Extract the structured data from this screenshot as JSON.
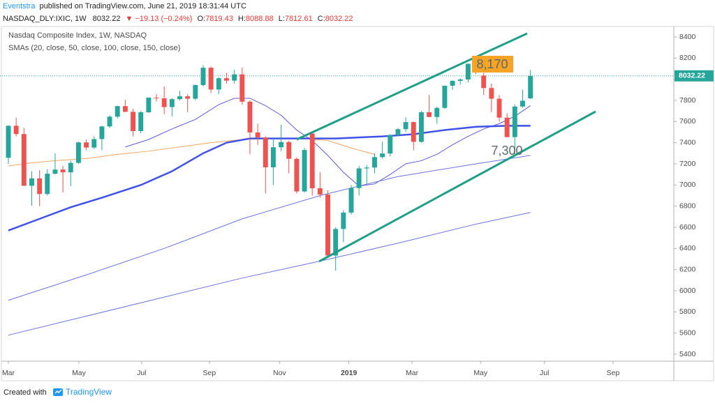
{
  "header": {
    "author": "Eventstra",
    "published": "published on TradingView.com, June 21, 2019 18:31:44 UTC",
    "symbol": "NASDAQ_DLY:IXIC, 1W",
    "last": "8032.22",
    "change": "▼ −19.13 (−0.24%)",
    "ohlc": [
      {
        "label": "O:",
        "value": "7819.43"
      },
      {
        "label": "H:",
        "value": "8088.88"
      },
      {
        "label": "L:",
        "value": "7812.61"
      },
      {
        "label": "C:",
        "value": "8032.22"
      }
    ]
  },
  "chart_data": {
    "type": "candlestick",
    "title": "Nasdaq Composite Index, 1W, NASDAQ",
    "subtitle": "SMAs (20, close, 50, close, 100, close, 150, close)",
    "x": [
      0,
      1,
      2,
      3,
      4,
      5,
      6,
      7,
      8,
      9,
      10,
      11,
      12,
      13,
      14,
      15,
      16,
      17,
      18,
      19,
      20,
      21,
      22,
      23,
      24,
      25,
      26,
      27,
      28,
      29,
      30,
      31,
      32,
      33,
      34,
      35,
      36,
      37,
      38,
      39,
      40,
      41,
      42,
      43,
      44,
      45,
      46,
      47,
      48,
      49,
      50,
      51,
      52,
      53,
      54,
      55,
      56,
      57,
      58,
      59,
      60,
      61,
      62,
      63,
      64,
      65,
      66,
      67
    ],
    "open": [
      7257,
      7560,
      7482,
      6993,
      7063,
      6915,
      7107,
      7146,
      7120,
      7209,
      7403,
      7354,
      7434,
      7554,
      7646,
      7746,
      7692,
      7510,
      7688,
      7826,
      7820,
      7737,
      7812,
      7839,
      7816,
      7945,
      8109,
      7903,
      8010,
      7987,
      8046,
      7788,
      7497,
      7449,
      7167,
      7357,
      7406,
      7248,
      6939,
      7486,
      6969,
      6910,
      6333,
      6584,
      6739,
      6971,
      7157,
      7165,
      7264,
      7298,
      7472,
      7528,
      7595,
      7408,
      7688,
      7643,
      7729,
      7939,
      7985,
      7998,
      8146,
      8035,
      7917,
      7816,
      7637,
      7453,
      7742,
      7820
    ],
    "high": [
      7565,
      7637,
      7540,
      7130,
      7140,
      7150,
      7300,
      7180,
      7230,
      7410,
      7430,
      7460,
      7560,
      7660,
      7750,
      7806,
      7720,
      7700,
      7830,
      7860,
      7933,
      7820,
      7890,
      7860,
      7950,
      8133,
      8120,
      8020,
      8060,
      8090,
      8110,
      7800,
      7580,
      7460,
      7450,
      7570,
      7420,
      7260,
      7350,
      7490,
      7120,
      6950,
      6600,
      6760,
      7000,
      7180,
      7190,
      7300,
      7410,
      7480,
      7540,
      7640,
      7600,
      7700,
      7850,
      7740,
      7940,
      7990,
      8010,
      8150,
      8176,
      8060,
      7960,
      7850,
      7680,
      7760,
      7900,
      8089
    ],
    "low": [
      7200,
      7460,
      6990,
      6805,
      6800,
      6900,
      7100,
      6930,
      6990,
      7200,
      7330,
      7340,
      7330,
      7540,
      7630,
      7690,
      7460,
      7490,
      7680,
      7790,
      7670,
      7650,
      7800,
      7690,
      7800,
      7930,
      7870,
      7860,
      7960,
      7960,
      7760,
      7290,
      7380,
      6920,
      7000,
      7320,
      7110,
      6920,
      6930,
      6900,
      6880,
      6330,
      6190,
      6460,
      6720,
      6900,
      7010,
      7110,
      7250,
      7270,
      7460,
      7500,
      7330,
      7400,
      7640,
      7580,
      7720,
      7900,
      7950,
      7970,
      8050,
      7850,
      7690,
      7600,
      7450,
      7290,
      7730,
      7813
    ],
    "close": [
      7560,
      7482,
      6993,
      7063,
      6915,
      7107,
      7146,
      7120,
      7209,
      7403,
      7354,
      7434,
      7554,
      7646,
      7746,
      7692,
      7510,
      7688,
      7826,
      7820,
      7737,
      7812,
      7839,
      7816,
      7945,
      8109,
      7903,
      8010,
      7987,
      8046,
      7788,
      7497,
      7449,
      7167,
      7357,
      7406,
      7248,
      6939,
      7331,
      6969,
      6910,
      6333,
      6584,
      6739,
      6971,
      7157,
      7165,
      7264,
      7298,
      7472,
      7528,
      7595,
      7408,
      7688,
      7643,
      7729,
      7939,
      7985,
      7998,
      8146,
      8164,
      7917,
      7816,
      7637,
      7453,
      7742,
      7797,
      8032
    ],
    "up_color": "#26a69a",
    "down_color": "#ef5350",
    "series": [
      {
        "color": "#f4a460",
        "width": 1,
        "x": [
          0,
          3,
          6,
          10,
          14,
          18,
          22,
          26,
          30,
          34,
          38,
          41,
          44,
          47
        ],
        "values": [
          7180,
          7210,
          7230,
          7250,
          7290,
          7320,
          7360,
          7400,
          7430,
          7440,
          7440,
          7420,
          7350,
          7290
        ]
      },
      {
        "color": "#5b5bd6",
        "width": 1,
        "x": [
          15,
          18,
          21,
          24,
          27,
          29,
          31,
          33,
          35,
          37,
          39,
          41,
          43,
          45,
          47,
          49,
          51,
          53,
          55,
          57,
          59,
          61,
          63,
          65,
          67
        ],
        "values": [
          7360,
          7430,
          7530,
          7620,
          7760,
          7820,
          7820,
          7750,
          7660,
          7520,
          7420,
          7280,
          7120,
          6990,
          7010,
          7100,
          7200,
          7230,
          7290,
          7380,
          7460,
          7530,
          7580,
          7650,
          7750
        ]
      },
      {
        "color": "#3f51e8",
        "width": 2.5,
        "x": [
          0,
          4,
          8,
          12,
          17,
          21,
          25,
          28,
          31,
          36,
          42,
          48,
          52,
          56,
          60,
          64,
          67
        ],
        "values": [
          6570,
          6680,
          6790,
          6880,
          7000,
          7130,
          7300,
          7400,
          7440,
          7440,
          7440,
          7460,
          7480,
          7520,
          7550,
          7560,
          7560
        ]
      },
      {
        "color": "#6c72e0",
        "width": 1,
        "x": [
          0,
          10,
          20,
          30,
          40,
          50,
          60,
          67
        ],
        "values": [
          5910,
          6150,
          6400,
          6680,
          6900,
          7080,
          7200,
          7280
        ]
      },
      {
        "color": "#6c72e0",
        "width": 1,
        "x": [
          0,
          10,
          20,
          30,
          40,
          50,
          60,
          67
        ],
        "values": [
          5580,
          5760,
          5940,
          6120,
          6280,
          6450,
          6630,
          6740
        ]
      }
    ],
    "last_price": 8032.22,
    "annotations": [
      {
        "text": "8,170"
      },
      {
        "text": "7,300"
      }
    ],
    "xlim": [
      -1.075,
      85.4
    ],
    "xticks": [
      {
        "value": 0,
        "label": "Mar"
      },
      {
        "value": 9.05,
        "label": "May"
      },
      {
        "value": 17.1,
        "label": "Jul"
      },
      {
        "value": 25.8,
        "label": "Sep"
      },
      {
        "value": 34.8,
        "label": "Nov"
      },
      {
        "value": 43.7,
        "label": "2019"
      },
      {
        "value": 51.8,
        "label": "Mar"
      },
      {
        "value": 60.6,
        "label": "May"
      },
      {
        "value": 68.8,
        "label": "Jul"
      },
      {
        "value": 77.6,
        "label": "Sep"
      }
    ],
    "ylim": [
      5334,
      8499
    ],
    "yticks": [
      5400,
      5600,
      5800,
      6000,
      6200,
      6400,
      6600,
      6800,
      7000,
      7200,
      7400,
      7600,
      7800,
      8000,
      8200,
      8400
    ],
    "grid": false
  },
  "footer": {
    "created": "Created with",
    "brand": "TradingView"
  }
}
